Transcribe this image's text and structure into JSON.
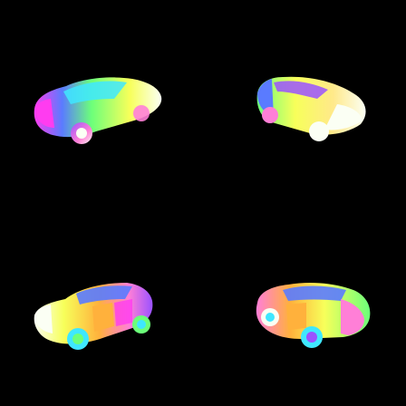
{
  "scene": {
    "background": "#000000",
    "subject": "car",
    "shading": "surface-normal-colors",
    "views": [
      {
        "id": "front-left-three-quarter",
        "facing": "left"
      },
      {
        "id": "front-right-three-quarter",
        "facing": "right"
      },
      {
        "id": "side-left-low",
        "facing": "left"
      },
      {
        "id": "rear-right-low",
        "facing": "right"
      }
    ]
  },
  "palette": {
    "magenta": "#ff3cf0",
    "pink": "#ff7fd7",
    "purple": "#9a52ff",
    "blue": "#5a7bff",
    "cyan": "#3fe7ff",
    "green": "#6cff7a",
    "yellow": "#f7ff5a",
    "orange": "#ffb13c",
    "white": "#fbfff4"
  }
}
